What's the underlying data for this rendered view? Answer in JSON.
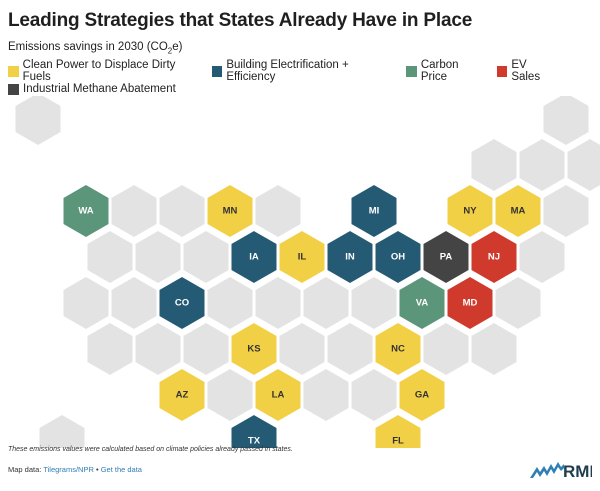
{
  "title": "Leading Strategies that States Already Have in Place",
  "subtitle": {
    "prefix": "Emissions savings in 2030 (CO",
    "sub": "2",
    "suffix": "e)"
  },
  "legend": [
    {
      "key": "clean",
      "label": "Clean Power to Displace Dirty Fuels",
      "color": "#f2d046"
    },
    {
      "key": "building",
      "label": "Building Electrification + Efficiency",
      "color": "#245a73"
    },
    {
      "key": "carbon",
      "label": "Carbon Price",
      "color": "#5b957a"
    },
    {
      "key": "ev",
      "label": "EV Sales",
      "color": "#cf3a2c"
    },
    {
      "key": "methane",
      "label": "Industrial Methane Abatement",
      "color": "#444444"
    }
  ],
  "colors": {
    "empty": "#e3e3e3",
    "label_light": "#ffffff",
    "label_dark": "#333333"
  },
  "states": [
    {
      "name": "WA",
      "category": "carbon"
    },
    {
      "name": "MN",
      "category": "clean"
    },
    {
      "name": "MI",
      "category": "building"
    },
    {
      "name": "NY",
      "category": "clean"
    },
    {
      "name": "MA",
      "category": "clean"
    },
    {
      "name": "IA",
      "category": "building"
    },
    {
      "name": "IL",
      "category": "clean"
    },
    {
      "name": "IN",
      "category": "building"
    },
    {
      "name": "OH",
      "category": "building"
    },
    {
      "name": "PA",
      "category": "methane"
    },
    {
      "name": "NJ",
      "category": "ev"
    },
    {
      "name": "CO",
      "category": "building"
    },
    {
      "name": "VA",
      "category": "carbon"
    },
    {
      "name": "MD",
      "category": "ev"
    },
    {
      "name": "KS",
      "category": "clean"
    },
    {
      "name": "NC",
      "category": "clean"
    },
    {
      "name": "AZ",
      "category": "clean"
    },
    {
      "name": "LA",
      "category": "clean"
    },
    {
      "name": "GA",
      "category": "clean"
    },
    {
      "name": "TX",
      "category": "building"
    },
    {
      "name": "FL",
      "category": "clean"
    }
  ],
  "footnote": "These emissions values were calculated based on climate policies already passed in states.",
  "mapdata": {
    "prefix": "Map data: ",
    "source": "Tilegrams/NPR",
    "separator": " • ",
    "get_data": "Get the data"
  },
  "logo_text": "RMI"
}
